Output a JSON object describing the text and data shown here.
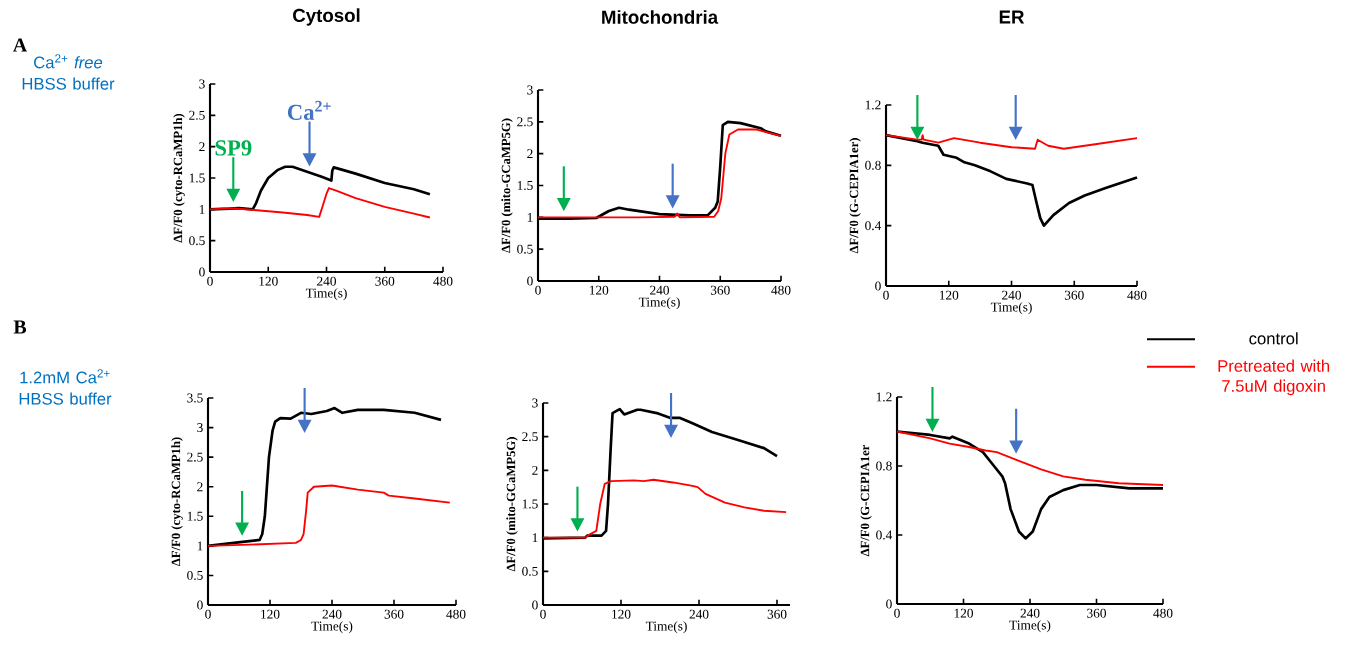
{
  "chart_data": [
    {
      "type": "line",
      "title": "Cytosol",
      "xlabel": "Time(s)",
      "ylabel": "ΔF/F0 (cyto-RCaMP1h)",
      "xlim": [
        0,
        480
      ],
      "xticks": [
        0,
        120,
        240,
        360,
        480
      ],
      "ylim": [
        0,
        3
      ],
      "yticks": [
        0,
        0.5,
        1,
        1.5,
        2,
        2.5,
        3
      ],
      "annotations": [
        "A",
        "Ca$^{2+}$ *free* HBSS buffer"
      ],
      "ref_lines": [
        {
          "axis": "x",
          "value": 48,
          "label": "SP9",
          "color": "#00b050"
        },
        {
          "axis": "x",
          "value": 205,
          "label": "Ca$^{2+}$",
          "color": "#4472c4"
        }
      ],
      "series": [
        {
          "color": "#000000",
          "x": [
            0,
            40,
            60,
            88,
            95,
            105,
            120,
            140,
            155,
            170,
            200,
            230,
            250,
            252,
            255,
            300,
            360,
            420,
            453
          ],
          "values": [
            1.0,
            1.01,
            1.02,
            1.0,
            1.1,
            1.3,
            1.5,
            1.63,
            1.68,
            1.68,
            1.6,
            1.52,
            1.46,
            1.62,
            1.67,
            1.57,
            1.42,
            1.32,
            1.24
          ]
        },
        {
          "color": "#ff0000",
          "x": [
            0,
            45,
            90,
            150,
            200,
            225,
            232,
            240,
            245,
            260,
            300,
            360,
            420,
            453
          ],
          "values": [
            1.0,
            1.02,
            0.99,
            0.95,
            0.91,
            0.88,
            1.05,
            1.25,
            1.34,
            1.3,
            1.18,
            1.04,
            0.93,
            0.87
          ]
        }
      ]
    },
    {
      "type": "line",
      "title": "Mitochondria",
      "xlabel": "Time(s)",
      "ylabel": "ΔF/F0 (mito-GCaMP5G)",
      "xlim": [
        0,
        480
      ],
      "xticks": [
        0,
        120,
        240,
        360,
        480
      ],
      "ylim": [
        0,
        3
      ],
      "yticks": [
        0,
        0.5,
        1,
        1.5,
        2,
        2.5,
        3
      ],
      "ref_lines": [
        {
          "axis": "x",
          "value": 51,
          "color": "#00b050"
        },
        {
          "axis": "x",
          "value": 266,
          "color": "#4472c4"
        }
      ],
      "series": [
        {
          "color": "#000000",
          "x": [
            0,
            60,
            115,
            140,
            160,
            180,
            240,
            300,
            335,
            350,
            355,
            360,
            365,
            375,
            400,
            440,
            450,
            480
          ],
          "values": [
            0.98,
            0.98,
            0.99,
            1.1,
            1.15,
            1.12,
            1.05,
            1.03,
            1.03,
            1.15,
            1.25,
            1.8,
            2.45,
            2.5,
            2.48,
            2.4,
            2.35,
            2.28
          ]
        },
        {
          "color": "#ff0000",
          "x": [
            0,
            100,
            200,
            270,
            275,
            280,
            348,
            356,
            362,
            370,
            378,
            395,
            430,
            460,
            480
          ],
          "values": [
            1.0,
            1.0,
            1.0,
            1.01,
            1.06,
            1.0,
            1.01,
            1.1,
            1.3,
            2.0,
            2.3,
            2.38,
            2.38,
            2.32,
            2.28
          ]
        }
      ]
    },
    {
      "type": "line",
      "title": "ER",
      "xlabel": "Time(s)",
      "ylabel": "ΔF/F0 (G-CEPIA1er)",
      "xlim": [
        0,
        480
      ],
      "xticks": [
        0,
        120,
        240,
        360,
        480
      ],
      "ylim": [
        0,
        1.2
      ],
      "yticks": [
        0,
        0.4,
        0.8,
        1.2
      ],
      "ref_lines": [
        {
          "axis": "x",
          "value": 60,
          "color": "#00b050"
        },
        {
          "axis": "x",
          "value": 248,
          "color": "#4472c4"
        }
      ],
      "series": [
        {
          "color": "#000000",
          "x": [
            0,
            60,
            70,
            100,
            110,
            135,
            150,
            170,
            200,
            230,
            270,
            280,
            288,
            295,
            302,
            320,
            350,
            380,
            420,
            480
          ],
          "values": [
            1.0,
            0.96,
            0.95,
            0.93,
            0.87,
            0.85,
            0.82,
            0.8,
            0.76,
            0.71,
            0.68,
            0.67,
            0.55,
            0.45,
            0.4,
            0.47,
            0.55,
            0.6,
            0.65,
            0.72
          ]
        },
        {
          "color": "#ff0000",
          "x": [
            0,
            60,
            68,
            70,
            72,
            100,
            130,
            180,
            240,
            285,
            290,
            310,
            340,
            400,
            480
          ],
          "values": [
            1.0,
            0.97,
            0.97,
            1.0,
            0.97,
            0.95,
            0.98,
            0.95,
            0.92,
            0.91,
            0.97,
            0.93,
            0.91,
            0.94,
            0.98
          ]
        }
      ]
    },
    {
      "type": "line",
      "xlabel": "Time(s)",
      "ylabel": "ΔF/F0 (cyto-RCaMP1h)",
      "xlim": [
        0,
        480
      ],
      "xticks": [
        0,
        120,
        240,
        360,
        480
      ],
      "ylim": [
        0,
        3.5
      ],
      "yticks": [
        0,
        0.5,
        1,
        1.5,
        2,
        2.5,
        3,
        3.5
      ],
      "annotations": [
        "B",
        "1.2mM Ca$^{2+}$ HBSS buffer"
      ],
      "ref_lines": [
        {
          "axis": "x",
          "value": 66,
          "color": "#00b050"
        },
        {
          "axis": "x",
          "value": 187,
          "color": "#4472c4"
        }
      ],
      "series": [
        {
          "color": "#000000",
          "x": [
            0,
            50,
            100,
            105,
            110,
            118,
            125,
            130,
            140,
            160,
            180,
            200,
            230,
            245,
            260,
            290,
            340,
            400,
            451
          ],
          "values": [
            1.0,
            1.05,
            1.1,
            1.2,
            1.5,
            2.5,
            2.95,
            3.1,
            3.16,
            3.15,
            3.25,
            3.23,
            3.28,
            3.33,
            3.25,
            3.3,
            3.3,
            3.25,
            3.13
          ]
        },
        {
          "color": "#ff0000",
          "x": [
            0,
            80,
            170,
            180,
            185,
            190,
            193,
            205,
            240,
            290,
            340,
            350,
            400,
            468
          ],
          "values": [
            1.0,
            1.02,
            1.05,
            1.1,
            1.2,
            1.6,
            1.9,
            2.0,
            2.02,
            1.95,
            1.9,
            1.85,
            1.8,
            1.73
          ]
        }
      ]
    },
    {
      "type": "line",
      "xlabel": "Time(s)",
      "ylabel": "ΔF/F0 (mito-GCaMP5G)",
      "xlim": [
        0,
        380
      ],
      "xticks": [
        0,
        120,
        240,
        360
      ],
      "ylim": [
        0,
        3
      ],
      "yticks": [
        0,
        0.5,
        1,
        1.5,
        2,
        2.5,
        3
      ],
      "ref_lines": [
        {
          "axis": "x",
          "value": 53,
          "color": "#00b050"
        },
        {
          "axis": "x",
          "value": 197,
          "color": "#4472c4"
        }
      ],
      "series": [
        {
          "color": "#000000",
          "x": [
            0,
            65,
            68,
            90,
            97,
            100,
            104,
            107,
            118,
            125,
            145,
            150,
            175,
            195,
            210,
            230,
            260,
            300,
            340,
            360
          ],
          "values": [
            0.99,
            1.0,
            1.03,
            1.03,
            1.1,
            1.5,
            2.3,
            2.85,
            2.91,
            2.83,
            2.9,
            2.9,
            2.85,
            2.78,
            2.78,
            2.7,
            2.57,
            2.45,
            2.33,
            2.21
          ]
        },
        {
          "color": "#ff0000",
          "x": [
            0,
            65,
            72,
            82,
            88,
            95,
            105,
            140,
            155,
            170,
            200,
            230,
            238,
            250,
            280,
            310,
            340,
            374
          ],
          "values": [
            1.0,
            1.0,
            1.05,
            1.1,
            1.5,
            1.8,
            1.84,
            1.85,
            1.84,
            1.86,
            1.82,
            1.77,
            1.75,
            1.65,
            1.52,
            1.45,
            1.4,
            1.38
          ]
        }
      ]
    },
    {
      "type": "line",
      "xlabel": "Time(s)",
      "ylabel": "ΔF/F0 (G-CEPIA1er",
      "xlim": [
        0,
        480
      ],
      "xticks": [
        0,
        120,
        240,
        360,
        480
      ],
      "ylim": [
        0,
        1.2
      ],
      "yticks": [
        0,
        0.4,
        0.8,
        1.2
      ],
      "legend": "top right",
      "ref_lines": [
        {
          "axis": "x",
          "value": 64,
          "color": "#00b050"
        },
        {
          "axis": "x",
          "value": 215,
          "color": "#4472c4"
        }
      ],
      "series": [
        {
          "name": "control",
          "color": "#000000",
          "x": [
            0,
            60,
            95,
            100,
            130,
            155,
            175,
            190,
            195,
            205,
            220,
            232,
            245,
            260,
            275,
            300,
            330,
            360,
            420,
            480
          ],
          "values": [
            1.0,
            0.98,
            0.96,
            0.97,
            0.93,
            0.88,
            0.8,
            0.74,
            0.7,
            0.55,
            0.42,
            0.38,
            0.42,
            0.55,
            0.62,
            0.66,
            0.69,
            0.69,
            0.67,
            0.67
          ]
        },
        {
          "name": "Pretreated with 7.5uM digoxin",
          "color": "#ff0000",
          "x": [
            0,
            60,
            95,
            130,
            160,
            180,
            220,
            260,
            300,
            340,
            400,
            480
          ],
          "values": [
            1.0,
            0.96,
            0.93,
            0.91,
            0.89,
            0.88,
            0.83,
            0.78,
            0.74,
            0.72,
            0.7,
            0.69
          ]
        }
      ]
    }
  ]
}
